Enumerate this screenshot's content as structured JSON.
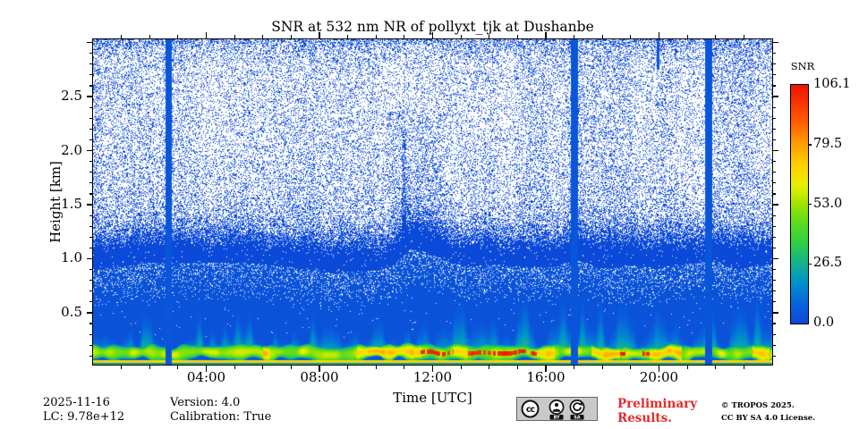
{
  "chart_data": {
    "type": "heatmap",
    "title": "SNR at 532 nm NR of pollyxt_tjk at Dushanbe",
    "xlabel": "Time [UTC]",
    "ylabel": "Height [km]",
    "x_axis": {
      "unit": "hours UTC",
      "min": 0,
      "max": 24,
      "major_tick_hours": [
        4,
        8,
        12,
        16,
        20
      ],
      "major_tick_labels": [
        "04:00",
        "08:00",
        "12:00",
        "16:00",
        "20:00"
      ],
      "minor_tick_every_hours": 1
    },
    "y_axis": {
      "unit": "km",
      "min": 0.02,
      "max": 3.03,
      "major_ticks": [
        0.5,
        1.0,
        1.5,
        2.0,
        2.5
      ],
      "major_tick_labels": [
        "0.5",
        "1.0",
        "1.5",
        "2.0",
        "2.5"
      ],
      "minor_tick_every_km": 0.1
    },
    "colorbar": {
      "title": "SNR",
      "vmin": 0.0,
      "vmax": 106.1,
      "tick_values": [
        106.1,
        79.5,
        53.0,
        26.5,
        0.0
      ],
      "tick_labels": [
        "106.1",
        "79.5",
        "53.0",
        "26.5",
        "0.0"
      ],
      "colormap_stops": [
        [
          0.0,
          "#0b4ad8"
        ],
        [
          0.08,
          "#0864dc"
        ],
        [
          0.18,
          "#0096c8"
        ],
        [
          0.25,
          "#14b28c"
        ],
        [
          0.33,
          "#2dcd4b"
        ],
        [
          0.42,
          "#5adc1e"
        ],
        [
          0.5,
          "#a0e400"
        ],
        [
          0.58,
          "#e8f000"
        ],
        [
          0.66,
          "#ffd200"
        ],
        [
          0.75,
          "#ffa000"
        ],
        [
          0.85,
          "#ff5a00"
        ],
        [
          1.0,
          "#ee1400"
        ]
      ]
    },
    "heatmap_appearance": {
      "base_blue": "#0b4ad8",
      "noise_seed": 1337,
      "speckle": "blue noise dots on white, density increasing toward ground, solid blue below ~0.9 km",
      "saturated_columns_hours": [
        [
          2.56,
          2.78
        ],
        [
          16.88,
          17.12
        ],
        [
          21.6,
          21.88
        ]
      ],
      "thin_top_column_hours": [
        19.92,
        20.0
      ],
      "dense_streak_hours": [
        10.9,
        11.05
      ],
      "disturbance_hours": [
        10.4,
        12.3
      ],
      "boundary_layer": {
        "center_km": 0.12,
        "thickness_km": 0.08,
        "description": "continuous near-surface aerosol layer, green-yellow with red cores mostly 11:30-20:00 UTC"
      },
      "surface_line_km": 0.045,
      "red_core_hours": [
        [
          11.57,
          12.74
        ],
        [
          13.22,
          14.2
        ],
        [
          14.29,
          15.37
        ],
        [
          15.46,
          15.74
        ],
        [
          18.6,
          18.8
        ],
        [
          19.4,
          19.65
        ]
      ],
      "bright_yellow_hours": [
        [
          6.0,
          6.25
        ],
        [
          9.3,
          11.6
        ],
        [
          12.7,
          13.2
        ],
        [
          15.7,
          16.3
        ],
        [
          17.6,
          18.6
        ],
        [
          19.65,
          20.8
        ],
        [
          23.3,
          23.9
        ]
      ]
    }
  },
  "footer": {
    "date": "2025-11-16",
    "lc": "LC: 9.78e+12",
    "version": "Version: 4.0",
    "calibration": "Calibration: True"
  },
  "license": {
    "badge_cc": "cc",
    "badge_by": "BY",
    "badge_sa": "SA",
    "preliminary": "Preliminary Results.",
    "preliminary_color": "#e22b2b",
    "copyright_line1": "© TROPOS 2025.",
    "copyright_line2": "CC BY SA 4.0 License."
  }
}
